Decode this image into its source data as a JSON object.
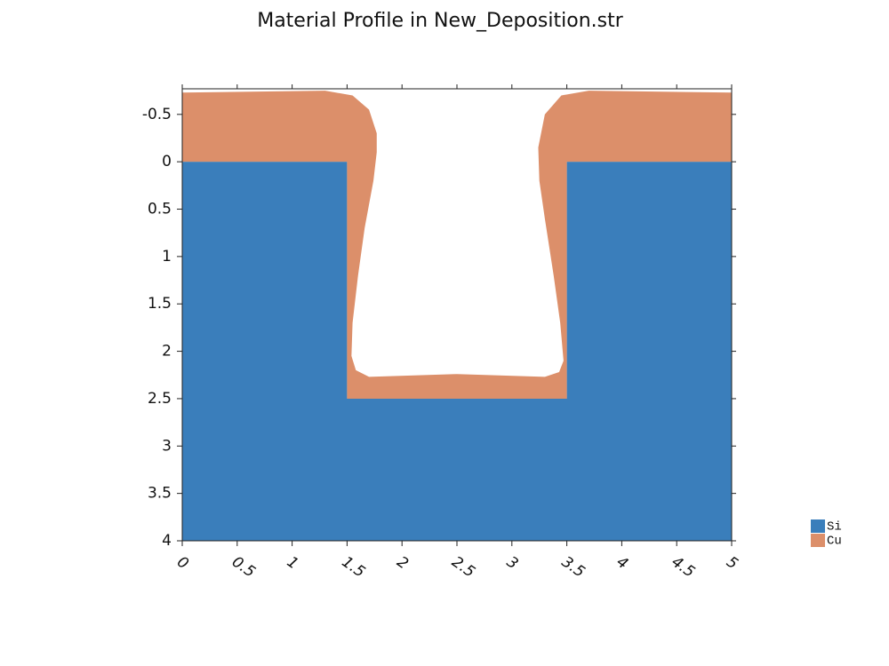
{
  "chart_data": {
    "type": "area",
    "title": "Material Profile in New_Deposition.str",
    "xlim": [
      0,
      5
    ],
    "ylim": [
      4,
      -0.77
    ],
    "xticks": [
      0,
      0.5,
      1,
      1.5,
      2,
      2.5,
      3,
      3.5,
      4,
      4.5,
      5
    ],
    "yticks": [
      -0.5,
      0,
      0.5,
      1,
      1.5,
      2,
      2.5,
      3,
      3.5,
      4
    ],
    "legend": "right",
    "series": [
      {
        "name": "Si",
        "color": "#3a7ebb",
        "x": [
          0,
          1.5,
          1.5,
          3.5,
          3.5,
          5,
          5,
          0
        ],
        "y": [
          0,
          0,
          2.5,
          2.5,
          0,
          0,
          4,
          4
        ]
      },
      {
        "name": "Cu",
        "color": "#dc8f6a",
        "x": [
          0,
          0,
          1.3,
          1.55,
          1.7,
          1.77,
          1.77,
          1.74,
          1.66,
          1.6,
          1.55,
          1.54,
          1.58,
          1.7,
          2.5,
          3.3,
          3.43,
          3.47,
          3.44,
          3.38,
          3.3,
          3.25,
          3.24,
          3.3,
          3.45,
          3.7,
          5,
          5,
          3.5,
          3.5,
          1.5,
          1.5
        ],
        "y": [
          0,
          -0.73,
          -0.75,
          -0.7,
          -0.55,
          -0.3,
          -0.1,
          0.2,
          0.7,
          1.2,
          1.7,
          2.05,
          2.2,
          2.27,
          2.24,
          2.27,
          2.22,
          2.1,
          1.7,
          1.2,
          0.6,
          0.2,
          -0.15,
          -0.5,
          -0.7,
          -0.75,
          -0.73,
          0,
          0,
          2.5,
          2.5,
          0
        ]
      }
    ]
  }
}
